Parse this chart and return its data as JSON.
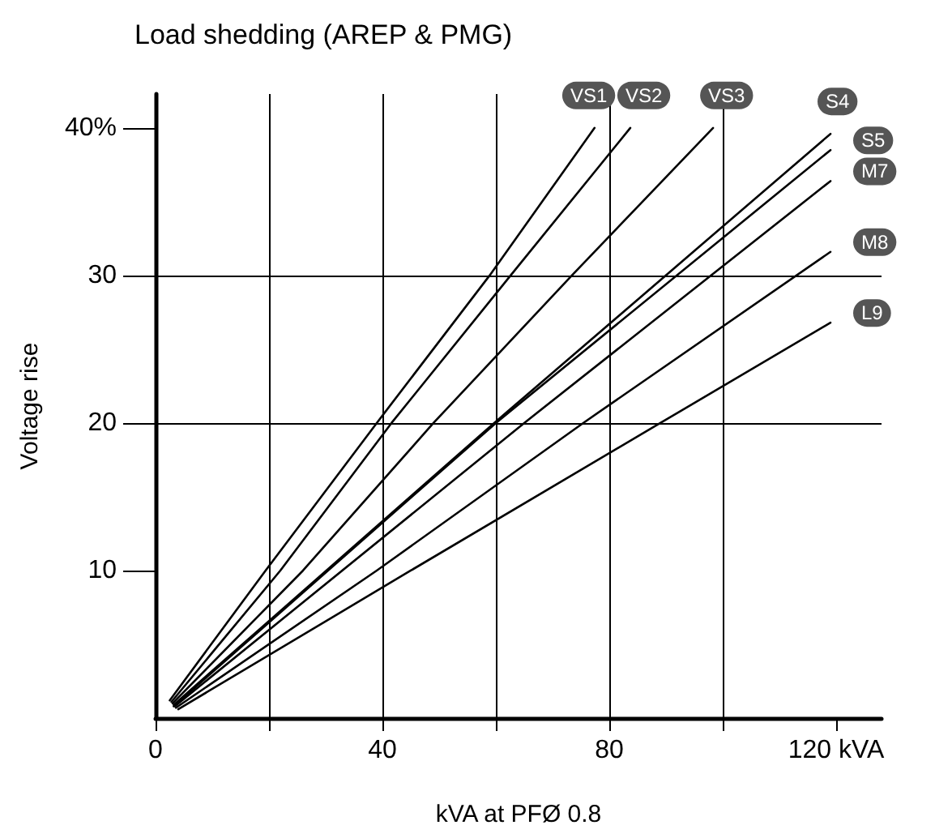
{
  "chart_data": {
    "type": "line",
    "title": "Load shedding (AREP & PMG)",
    "xlabel": "kVA at PFØ 0.8",
    "ylabel": "Voltage rise",
    "xlim": [
      0,
      128
    ],
    "xticks": [
      0,
      {
        "value": 20,
        "label": null
      },
      40,
      {
        "value": 60,
        "label": null
      },
      80,
      {
        "value": 100,
        "label": null
      },
      {
        "value": 120,
        "label": "120 kVA"
      }
    ],
    "ylim": [
      0,
      42.3
    ],
    "yticks": [
      10,
      20,
      30,
      {
        "value": 40,
        "label": "40%"
      }
    ],
    "grid": true,
    "legend": false,
    "marker": "none",
    "line_style": "solid",
    "series": [
      {
        "name": "VS1",
        "color": "#000000",
        "x": [
          2.5,
          19.4,
          39,
          58.9,
          77.4
        ],
        "values": [
          1.2,
          10,
          20,
          30,
          40
        ]
      },
      {
        "name": "VS2",
        "color": "#000000",
        "x": [
          2.8,
          22,
          41.6,
          62.6,
          83.7
        ],
        "values": [
          1.1,
          10,
          20,
          30,
          40
        ]
      },
      {
        "name": "VS3",
        "color": "#000000",
        "x": [
          3,
          26,
          49,
          73.4,
          98.3
        ],
        "values": [
          1,
          10,
          20,
          30,
          40
        ]
      },
      {
        "name": "S4",
        "color": "#000000",
        "x": [
          3.2,
          59.7,
          119
        ],
        "values": [
          0.9,
          20,
          39.6
        ]
      },
      {
        "name": "S5",
        "color": "#000000",
        "x": [
          3.2,
          60,
          119
        ],
        "values": [
          0.8,
          20,
          38.5
        ]
      },
      {
        "name": "M7",
        "color": "#000000",
        "x": [
          3.4,
          65,
          119
        ],
        "values": [
          0.8,
          20,
          36.4
        ]
      },
      {
        "name": "M8",
        "color": "#000000",
        "x": [
          3.6,
          39,
          75.4,
          119
        ],
        "values": [
          0.7,
          10,
          20,
          31.6
        ]
      },
      {
        "name": "L9",
        "color": "#000000",
        "x": [
          4,
          45,
          89,
          119
        ],
        "values": [
          0.6,
          10,
          20,
          26.8
        ]
      }
    ]
  }
}
